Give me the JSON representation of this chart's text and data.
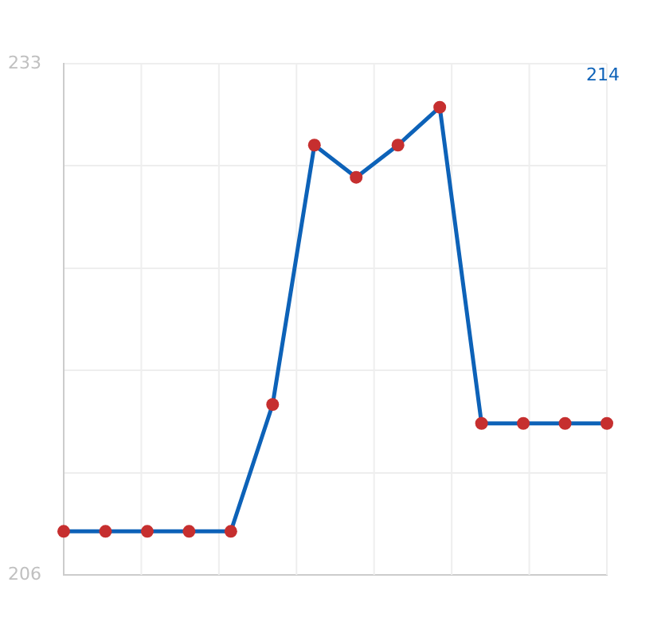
{
  "chart_data": {
    "type": "line",
    "categories": [
      null,
      null,
      null,
      null,
      null,
      null,
      null,
      null,
      null,
      null,
      null,
      null,
      null,
      null
    ],
    "series": [
      {
        "color": "#0d62b8",
        "values": [
          208.3,
          208.3,
          208.3,
          208.3,
          208.3,
          215,
          228.7,
          227,
          228.7,
          230.7,
          214,
          214,
          214,
          214
        ]
      }
    ],
    "ylim": [
      206,
      233
    ],
    "yticks": [
      206,
      {
        "value": 211.4,
        "label": null
      },
      {
        "value": 216.8,
        "label": null
      },
      {
        "value": 222.2,
        "label": null
      },
      {
        "value": 227.6,
        "label": null
      },
      233
    ],
    "annotations": [
      "214"
    ],
    "grid": true,
    "legend": false,
    "marker": "circle",
    "line_style": "solid",
    "tick_labels": "y"
  }
}
